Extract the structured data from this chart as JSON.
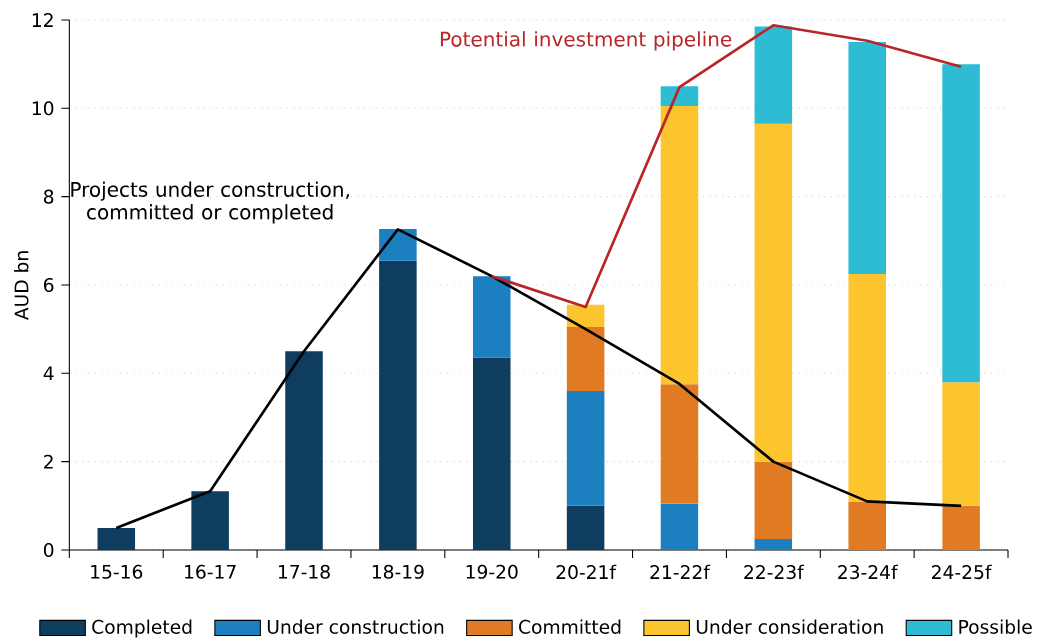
{
  "chart_data": {
    "type": "bar",
    "stacked": true,
    "ylabel": "AUD bn",
    "categories": [
      "15-16",
      "16-17",
      "17-18",
      "18-19",
      "19-20",
      "20-21f",
      "21-22f",
      "22-23f",
      "23-24f",
      "24-25f"
    ],
    "series": [
      {
        "name": "Completed",
        "color": "#0f3d5f",
        "values": [
          0.5,
          1.33,
          4.5,
          6.55,
          4.35,
          1.0,
          null,
          null,
          null,
          null
        ]
      },
      {
        "name": "Under construction",
        "color": "#1b7fc0",
        "values": [
          null,
          null,
          null,
          0.72,
          1.85,
          2.6,
          1.05,
          0.25,
          null,
          null
        ]
      },
      {
        "name": "Committed",
        "color": "#e07b24",
        "values": [
          null,
          null,
          null,
          null,
          null,
          1.45,
          2.7,
          1.75,
          1.1,
          1.0
        ]
      },
      {
        "name": "Under consideration",
        "color": "#fcc42d",
        "values": [
          null,
          null,
          null,
          null,
          null,
          0.5,
          6.3,
          7.65,
          5.15,
          2.8
        ]
      },
      {
        "name": "Possible",
        "color": "#2dbcd3",
        "values": [
          null,
          null,
          null,
          null,
          null,
          null,
          0.45,
          2.2,
          5.25,
          7.2
        ]
      },
      {
        "name": "Projects under construction, committed or completed",
        "type": "line",
        "color": "#000000",
        "values": [
          0.5,
          1.33,
          4.5,
          7.26,
          6.2,
          5.0,
          3.76,
          2.0,
          1.1,
          1.0
        ]
      },
      {
        "name": "Potential investment pipeline",
        "type": "line",
        "color": "#b8262a",
        "values": [
          null,
          null,
          null,
          null,
          6.2,
          5.5,
          10.48,
          11.88,
          11.53,
          10.94
        ]
      }
    ],
    "ylim": [
      0,
      12
    ],
    "yticks": [
      0,
      2,
      4,
      6,
      8,
      10,
      12
    ],
    "grid": "y",
    "legend": "bottom",
    "marker": "none",
    "line_style": "solid"
  }
}
